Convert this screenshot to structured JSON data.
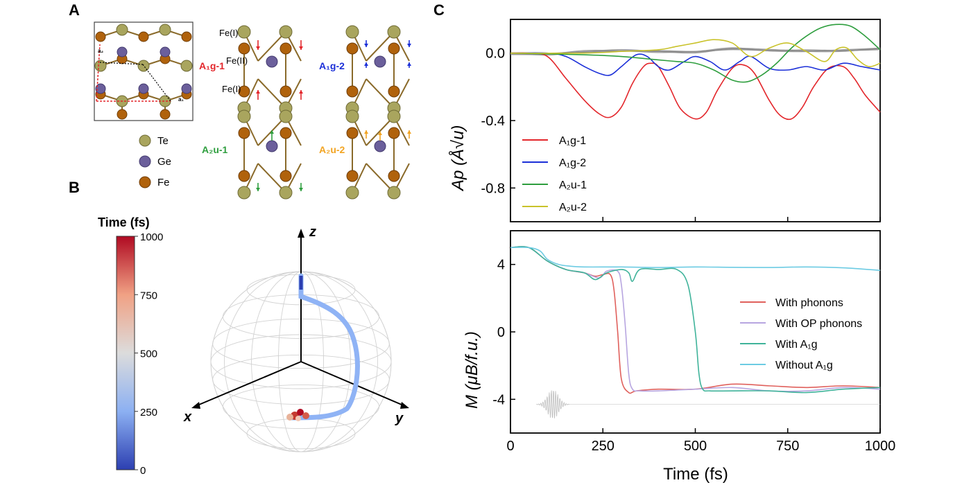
{
  "panels": {
    "a": "A",
    "b": "B",
    "c": "C"
  },
  "panel_a": {
    "lattice_labels": {
      "a1": "a₁",
      "a2": "a₂"
    },
    "legend": [
      {
        "name": "Te",
        "color": "#a9a55e"
      },
      {
        "name": "Ge",
        "color": "#6b5f9b"
      },
      {
        "name": "Fe",
        "color": "#b0620c"
      }
    ],
    "modes": [
      {
        "label": "A₁g-1",
        "color": "#e3262b"
      },
      {
        "label": "A₁g-2",
        "color": "#1b2fd8"
      },
      {
        "label": "A₂u-1",
        "color": "#2e9e3e"
      },
      {
        "label": "A₂u-2",
        "color": "#f2a422"
      }
    ],
    "site_labels": {
      "top": "Fe(I)",
      "middle": "Fe(II)",
      "bottom": "Fe(I)"
    }
  },
  "panel_b": {
    "colorbar_title": "Time (fs)",
    "colorbar_ticks": [
      "1000",
      "750",
      "500",
      "250",
      "0"
    ],
    "axes": {
      "x": "x",
      "y": "y",
      "z": "z"
    }
  },
  "chart_data": [
    {
      "type": "line",
      "panel": "C-top",
      "ylabel": "Ap (Å√u)",
      "ylim": [
        -1.0,
        0.2
      ],
      "xlim": [
        0,
        1000
      ],
      "yticks": [
        "0.0",
        "-0.4",
        "-0.8"
      ],
      "legend_position": "lower-left",
      "series": [
        {
          "name": "A₁g-1",
          "color": "#e3262b",
          "x": [
            0,
            50,
            100,
            150,
            200,
            240,
            270,
            300,
            330,
            360,
            380,
            400,
            430,
            460,
            500,
            530,
            560,
            600,
            630,
            660,
            700,
            730,
            760,
            790,
            820,
            860,
            900,
            930,
            960,
            1000
          ],
          "y": [
            0,
            0,
            -0.02,
            -0.15,
            -0.28,
            -0.36,
            -0.38,
            -0.32,
            -0.18,
            -0.08,
            -0.06,
            -0.08,
            -0.2,
            -0.33,
            -0.39,
            -0.35,
            -0.22,
            -0.09,
            -0.07,
            -0.12,
            -0.28,
            -0.37,
            -0.39,
            -0.32,
            -0.2,
            -0.09,
            -0.08,
            -0.15,
            -0.25,
            -0.35
          ]
        },
        {
          "name": "A₁g-2",
          "color": "#1b2fd8",
          "x": [
            0,
            100,
            150,
            200,
            240,
            270,
            300,
            340,
            370,
            400,
            430,
            470,
            500,
            540,
            580,
            620,
            650,
            700,
            750,
            800,
            850,
            900,
            950,
            1000
          ],
          "y": [
            0,
            0,
            -0.02,
            -0.08,
            -0.12,
            -0.13,
            -0.08,
            -0.01,
            -0.02,
            -0.08,
            -0.1,
            -0.05,
            -0.02,
            -0.05,
            -0.1,
            -0.05,
            -0.02,
            -0.09,
            -0.1,
            -0.08,
            -0.1,
            -0.06,
            -0.08,
            -0.1
          ]
        },
        {
          "name": "A₂u-1",
          "color": "#2e9e3e",
          "x": [
            0,
            200,
            300,
            400,
            450,
            500,
            550,
            600,
            640,
            680,
            720,
            760,
            800,
            840,
            880,
            920,
            960,
            1000
          ],
          "y": [
            0,
            -0.01,
            -0.02,
            -0.04,
            -0.05,
            -0.06,
            -0.1,
            -0.16,
            -0.17,
            -0.13,
            -0.06,
            0.03,
            0.1,
            0.15,
            0.17,
            0.16,
            0.1,
            0.02
          ]
        },
        {
          "name": "A₂u-2",
          "color": "#c9c22a",
          "x": [
            0,
            200,
            300,
            400,
            450,
            500,
            550,
            600,
            650,
            700,
            750,
            800,
            850,
            880,
            910,
            940,
            970,
            1000
          ],
          "y": [
            0,
            0,
            0.01,
            0.02,
            0.04,
            0.06,
            0.08,
            0.06,
            -0.02,
            0.03,
            0.06,
            0.01,
            -0.05,
            0.02,
            0.03,
            -0.04,
            -0.08,
            -0.06
          ]
        },
        {
          "name": "",
          "color": "#888888",
          "x": [
            0,
            100,
            200,
            300,
            400,
            500,
            600,
            700,
            800,
            900,
            1000
          ],
          "y": [
            0,
            0,
            0.005,
            0.01,
            0.015,
            0.01,
            0.02,
            0.015,
            0.02,
            0.015,
            0.02
          ]
        }
      ]
    },
    {
      "type": "line",
      "panel": "C-bottom",
      "xlabel": "Time (fs)",
      "ylabel": "M (μB/f.u.)",
      "xlim": [
        0,
        1000
      ],
      "ylim": [
        -6,
        6
      ],
      "xticks": [
        "0",
        "250",
        "500",
        "750",
        "1000"
      ],
      "yticks": [
        "4",
        "0",
        "-4"
      ],
      "legend_position": "right",
      "series": [
        {
          "name": "With phonons",
          "color": "#e0605c",
          "x": [
            0,
            50,
            100,
            150,
            200,
            230,
            250,
            270,
            280,
            290,
            300,
            320,
            340,
            400,
            500,
            600,
            700,
            800,
            900,
            1000
          ],
          "y": [
            5,
            5,
            4.2,
            3.7,
            3.5,
            3.3,
            3.4,
            3.4,
            2.5,
            0,
            -2.8,
            -3.6,
            -3.5,
            -3.4,
            -3.4,
            -3.1,
            -3.2,
            -3.3,
            -3.2,
            -3.3
          ]
        },
        {
          "name": "With OP phonons",
          "color": "#b7a5e0",
          "x": [
            0,
            50,
            100,
            150,
            200,
            240,
            260,
            290,
            300,
            310,
            320,
            330,
            350,
            400,
            500,
            600,
            700,
            800,
            900,
            1000
          ],
          "y": [
            5,
            5,
            4.2,
            3.7,
            3.5,
            3.2,
            3.6,
            3.6,
            2.8,
            0.5,
            -2.5,
            -3.4,
            -3.5,
            -3.5,
            -3.4,
            -3.3,
            -3.5,
            -3.5,
            -3.3,
            -3.4
          ]
        },
        {
          "name": "With A₁g",
          "color": "#3fb39a",
          "x": [
            0,
            50,
            100,
            150,
            200,
            230,
            260,
            300,
            320,
            330,
            350,
            400,
            450,
            480,
            500,
            510,
            520,
            540,
            600,
            700,
            800,
            900,
            1000
          ],
          "y": [
            5,
            5,
            4.2,
            3.7,
            3.5,
            3.1,
            3.5,
            3.7,
            3.5,
            3.0,
            3.7,
            3.7,
            3.7,
            2.8,
            0,
            -2.5,
            -3.4,
            -3.5,
            -3.5,
            -3.5,
            -3.6,
            -3.4,
            -3.3
          ]
        },
        {
          "name": "Without A₁g",
          "color": "#6ccbe3",
          "x": [
            0,
            50,
            80,
            100,
            130,
            160,
            200,
            300,
            400,
            500,
            600,
            700,
            800,
            900,
            1000
          ],
          "y": [
            5,
            5,
            4.8,
            4.3,
            4.0,
            3.9,
            3.85,
            3.85,
            3.82,
            3.85,
            3.83,
            3.82,
            3.85,
            3.8,
            3.65
          ]
        }
      ],
      "pulse": {
        "center": 115,
        "halfwidth": 45,
        "baseline": -4.3,
        "amplitude": 0.9,
        "color": "#bcbcbc"
      }
    }
  ]
}
